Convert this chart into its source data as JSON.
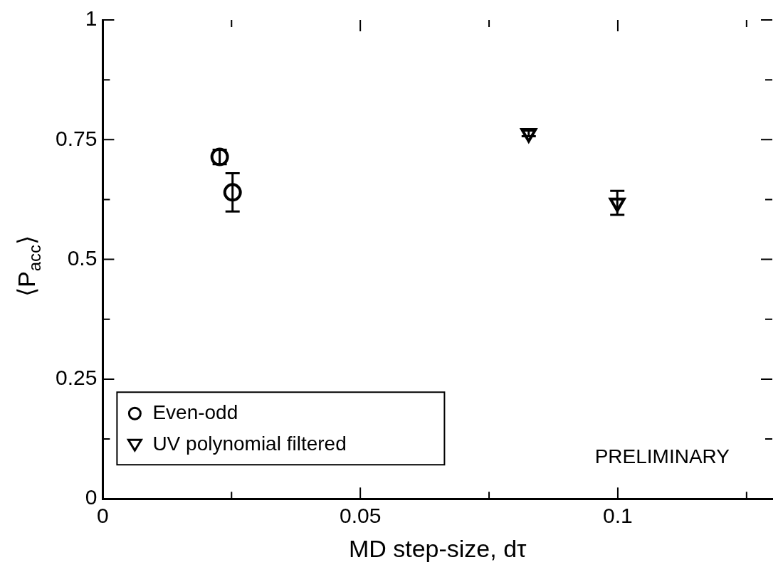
{
  "chart_data": {
    "type": "scatter",
    "xlabel": "MD step-size, dτ",
    "ylabel": "⟨P$_{acc}$⟩",
    "xlim": [
      0,
      0.13
    ],
    "xticks": [
      0,
      {
        "value": 0.025,
        "label": null
      },
      0.05,
      {
        "value": 0.075,
        "label": null
      },
      0.1,
      {
        "value": 0.125,
        "label": null
      }
    ],
    "ylim": [
      0,
      1
    ],
    "yticks": [
      0,
      {
        "value": 0.125,
        "label": null
      },
      0.25,
      {
        "value": 0.375,
        "label": null
      },
      0.5,
      {
        "value": 0.625,
        "label": null
      },
      0.75,
      {
        "value": 0.875,
        "label": null
      },
      1
    ],
    "series": [
      {
        "name": "Even-odd",
        "color": "#000000",
        "marker": "circle",
        "x": [
          0.0227,
          0.0252
        ],
        "values": [
          0.714,
          0.64
        ],
        "errors": [
          0.015,
          0.04
        ]
      },
      {
        "name": "UV polynomial filtered",
        "color": "#000000",
        "marker": "triangle",
        "x": [
          0.0827,
          0.0999
        ],
        "values": [
          0.763,
          0.618
        ],
        "errors": [
          0.006,
          0.025
        ]
      }
    ],
    "legend": "bottom left",
    "grid": false,
    "annotations": [
      "PRELIMINARY"
    ]
  }
}
